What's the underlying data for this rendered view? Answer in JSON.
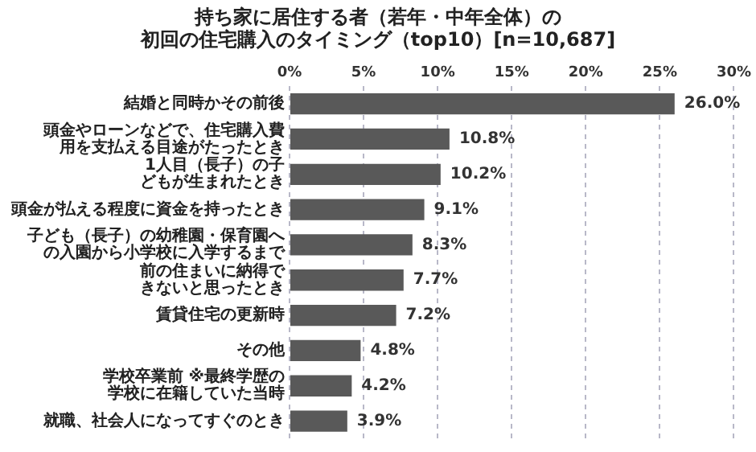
{
  "chart_data": {
    "type": "bar",
    "orientation": "horizontal",
    "title": [
      "持ち家に居住する者（若年・中年全体）の",
      "初回の住宅購入のタイミング（top10）[n=10,687]"
    ],
    "categories": [
      "結婚と同時かその前後",
      "頭金やローンなどで、住宅購入費用を支払える目途がたったとき",
      "1人目（長子）の子どもが生まれたとき",
      "頭金が払える程度に資金を持ったとき",
      "子ども（長子）の幼稚園・保育園への入園から小学校に入学するまで",
      "前の住まいに納得できないと思ったとき",
      "賃貸住宅の更新時",
      "その他",
      "学校卒業前 ※最終学歴の学校に在籍していた当時",
      "就職、社会人になってすぐのとき"
    ],
    "values": [
      26.0,
      10.8,
      10.2,
      9.1,
      8.3,
      7.7,
      7.2,
      4.8,
      4.2,
      3.9
    ],
    "value_labels": [
      "26.0%",
      "10.8%",
      "10.2%",
      "9.1%",
      "8.3%",
      "7.7%",
      "7.2%",
      "4.8%",
      "4.2%",
      "3.9%"
    ],
    "color": "#595959",
    "xlim": [
      0,
      30
    ],
    "xticks": [
      {
        "value": 0,
        "label": "0%"
      },
      {
        "value": 5,
        "label": "5%"
      },
      {
        "value": 10,
        "label": "10%"
      },
      {
        "value": 15,
        "label": "15%"
      },
      {
        "value": 20,
        "label": "20%"
      },
      {
        "value": 25,
        "label": "25%"
      },
      {
        "value": 30,
        "label": "30%"
      }
    ],
    "grid": "x",
    "legend": false
  }
}
